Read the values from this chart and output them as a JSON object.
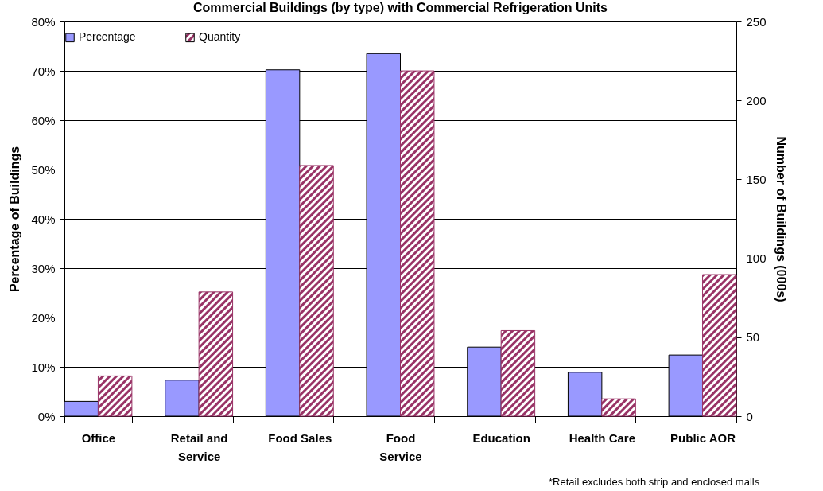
{
  "chart_data": {
    "type": "bar",
    "title": "Commercial Buildings (by type) with Commercial Refrigeration Units",
    "ylabel": "Percentage of Buildings",
    "y2label": "Number of Buildings (000s)",
    "categories": [
      "Office",
      "Retail and Service",
      "Food Sales",
      "Food Service",
      "Education",
      "Health Care",
      "Public AOR"
    ],
    "series": [
      {
        "name": "Percentage",
        "color": "#9999ff",
        "values": [
          3.0,
          7.3,
          70.2,
          73.5,
          14.0,
          8.9,
          12.4
        ]
      },
      {
        "name": "Quantity",
        "color": "#993366",
        "axis": "y2",
        "values": [
          25.5,
          78.7,
          158.8,
          218.7,
          54.2,
          11.0,
          89.7
        ]
      }
    ],
    "ylim": [
      0,
      80
    ],
    "yticks": [
      {
        "value": 0,
        "label": "0%"
      },
      {
        "value": 10,
        "label": "10%"
      },
      {
        "value": 20,
        "label": "20%"
      },
      {
        "value": 30,
        "label": "30%"
      },
      {
        "value": 40,
        "label": "40%"
      },
      {
        "value": 50,
        "label": "50%"
      },
      {
        "value": 60,
        "label": "60%"
      },
      {
        "value": 70,
        "label": "70%"
      },
      {
        "value": 80,
        "label": "80%"
      }
    ],
    "y2lim": [
      0,
      250
    ],
    "y2ticks": [
      0,
      50,
      100,
      150,
      200,
      250
    ],
    "grid": "y",
    "legend": "top",
    "annotations": [
      "*Retail excludes both strip and enclosed malls"
    ]
  }
}
